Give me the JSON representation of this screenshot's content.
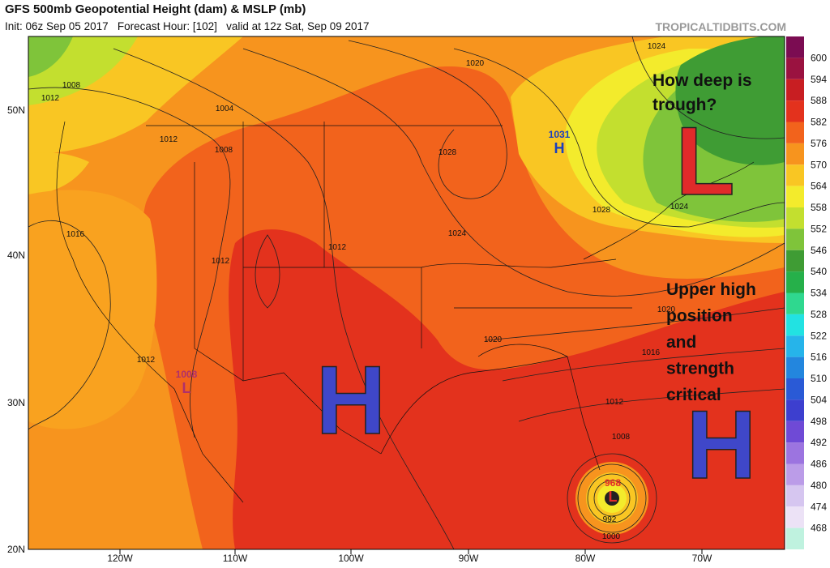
{
  "header": {
    "title": "GFS 500mb Geopotential Height (dam) & MSLP (mb)",
    "subtitle": "Init: 06z Sep 05 2017   Forecast Hour: [102]   valid at 12z Sat, Sep 09 2017",
    "site": "TROPICALTIDBITS.COM"
  },
  "colorbar": {
    "values": [
      600,
      594,
      588,
      582,
      576,
      570,
      564,
      558,
      552,
      546,
      540,
      534,
      528,
      522,
      516,
      510,
      504,
      498,
      492,
      486,
      480,
      474,
      468
    ],
    "colors": [
      "#9a1240",
      "#c81e22",
      "#e3321d",
      "#f2631c",
      "#f7941e",
      "#f9c623",
      "#f3eb2c",
      "#c3df2f",
      "#7fc43a",
      "#3f9c34",
      "#26b04a",
      "#2fd88f",
      "#22e2e2",
      "#26b4ea",
      "#2386de",
      "#2a5ad6",
      "#3d3fcf",
      "#6f4ad6",
      "#9c74e0",
      "#bb9ce8",
      "#d6c6f0",
      "#ece2f6",
      "#bff2df"
    ],
    "top_color": "#7b0c52"
  },
  "lat_labels": [
    "50N",
    "40N",
    "30N",
    "20N"
  ],
  "lon_labels": [
    "120W",
    "110W",
    "100W",
    "90W",
    "80W",
    "70W"
  ],
  "annotations": {
    "trough": [
      "How deep is",
      "trough?"
    ],
    "high": [
      "Upper high",
      "position",
      "and",
      "strength",
      "critical"
    ],
    "trough_letter": "L",
    "high_letter_left": "H",
    "high_letter_right": "H"
  },
  "pressure_centers": [
    {
      "value": "1031",
      "letter": "H"
    },
    {
      "value": "1008",
      "letter": "L"
    },
    {
      "value": "968",
      "letter": "L"
    }
  ],
  "isobar_labels": [
    "1008",
    "1012",
    "1004",
    "1012",
    "1008",
    "1020",
    "1024",
    "1028",
    "1016",
    "1012",
    "1012",
    "1024",
    "1020",
    "1028",
    "1024",
    "1020",
    "1016",
    "1012",
    "1008",
    "1012",
    "992",
    "1000"
  ]
}
